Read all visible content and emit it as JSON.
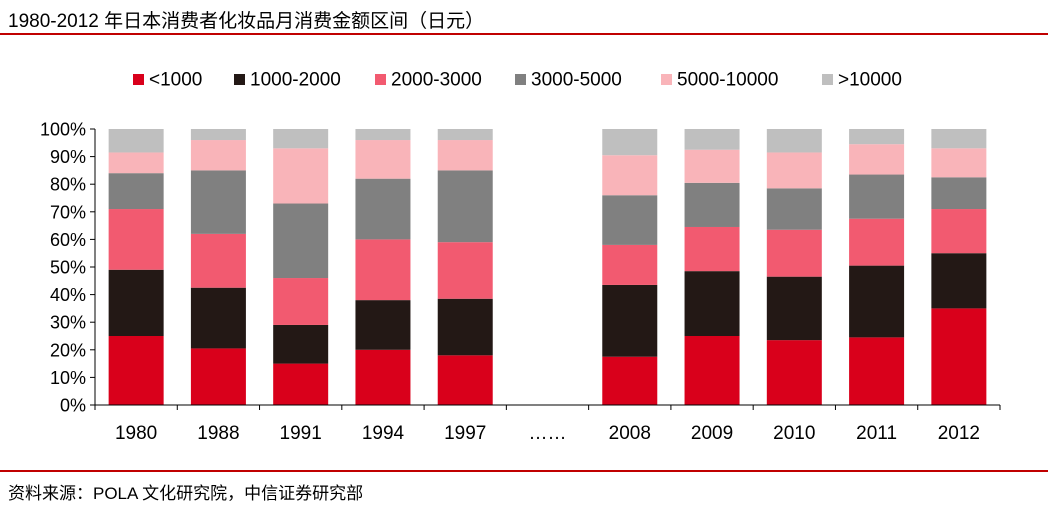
{
  "header": {
    "title": "1980-2012 年日本消费者化妆品月消费金额区间（日元）"
  },
  "footer": {
    "source": "资料来源：POLA 文化研究院，中信证券研究部"
  },
  "chart_data": {
    "type": "bar",
    "stacked": true,
    "categories": [
      "1980",
      "1988",
      "1991",
      "1994",
      "1997",
      "……",
      "2008",
      "2009",
      "2010",
      "2011",
      "2012"
    ],
    "gap_category": "……",
    "y_ticks": [
      "0%",
      "10%",
      "20%",
      "30%",
      "40%",
      "50%",
      "60%",
      "70%",
      "80%",
      "90%",
      "100%"
    ],
    "ylim": [
      0,
      100
    ],
    "legend_position": "top",
    "series": [
      {
        "name": "<1000",
        "color": "#d9001b",
        "values": [
          25,
          20.5,
          15,
          20,
          18,
          null,
          17.5,
          25,
          23.5,
          24.5,
          35
        ]
      },
      {
        "name": "1000-2000",
        "color": "#231815",
        "values": [
          24,
          22,
          14,
          18,
          20.5,
          null,
          26,
          23.5,
          23,
          26,
          20
        ]
      },
      {
        "name": "2000-3000",
        "color": "#f25a70",
        "values": [
          22,
          19.5,
          17,
          22,
          20.5,
          null,
          14.5,
          16,
          17,
          17,
          16
        ]
      },
      {
        "name": "3000-5000",
        "color": "#808080",
        "values": [
          13,
          23,
          27,
          22,
          26,
          null,
          18,
          16,
          15,
          16,
          11.5
        ]
      },
      {
        "name": "5000-10000",
        "color": "#f9b4b9",
        "values": [
          7.5,
          11,
          20,
          14,
          11,
          null,
          14.5,
          12,
          13,
          11,
          10.5
        ]
      },
      {
        "name": ">10000",
        "color": "#bfbfbf",
        "values": [
          8.5,
          4,
          7,
          4,
          4,
          null,
          9.5,
          7.5,
          8.5,
          5.5,
          7
        ]
      }
    ]
  }
}
